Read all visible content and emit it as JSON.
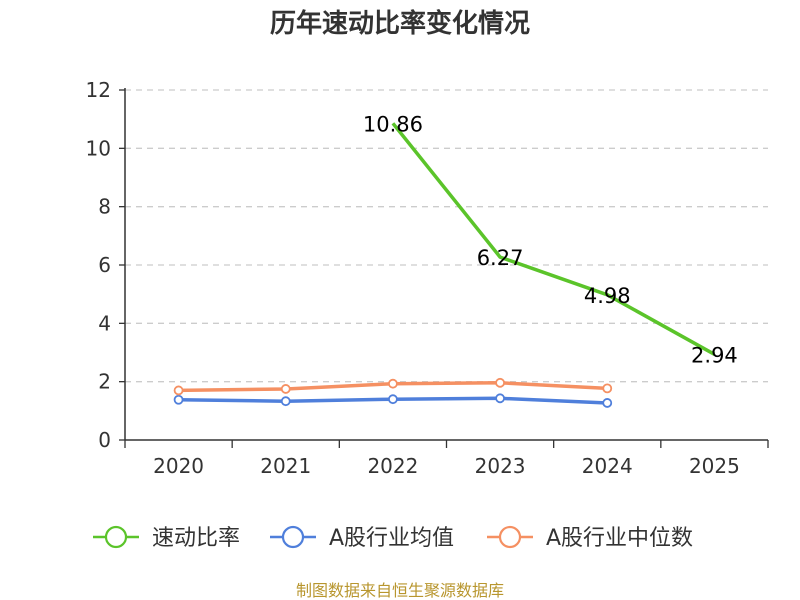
{
  "chart_data": {
    "type": "line",
    "title": "历年速动比率变化情况",
    "categories": [
      "2020",
      "2021",
      "2022",
      "2023",
      "2024",
      "2025"
    ],
    "ylim": [
      0,
      12
    ],
    "yticks": [
      "0",
      "2",
      "4",
      "6",
      "8",
      "10",
      "12"
    ],
    "grid": true,
    "legend_position": "bottom",
    "series": [
      {
        "name": "速动比率",
        "color": "#5bc42a",
        "values": [
          null,
          null,
          10.86,
          6.27,
          4.98,
          2.94
        ],
        "labels": [
          "",
          "",
          "10.86",
          "6.27",
          "4.98",
          "2.94"
        ],
        "show_markers": false
      },
      {
        "name": "A股行业均值",
        "color": "#4f7fdb",
        "values": [
          1.38,
          1.33,
          1.4,
          1.43,
          1.27,
          null
        ],
        "show_markers": true
      },
      {
        "name": "A股行业中位数",
        "color": "#f59062",
        "values": [
          1.7,
          1.75,
          1.93,
          1.96,
          1.77,
          null
        ],
        "show_markers": true
      }
    ],
    "source": "制图数据来自恒生聚源数据库"
  }
}
